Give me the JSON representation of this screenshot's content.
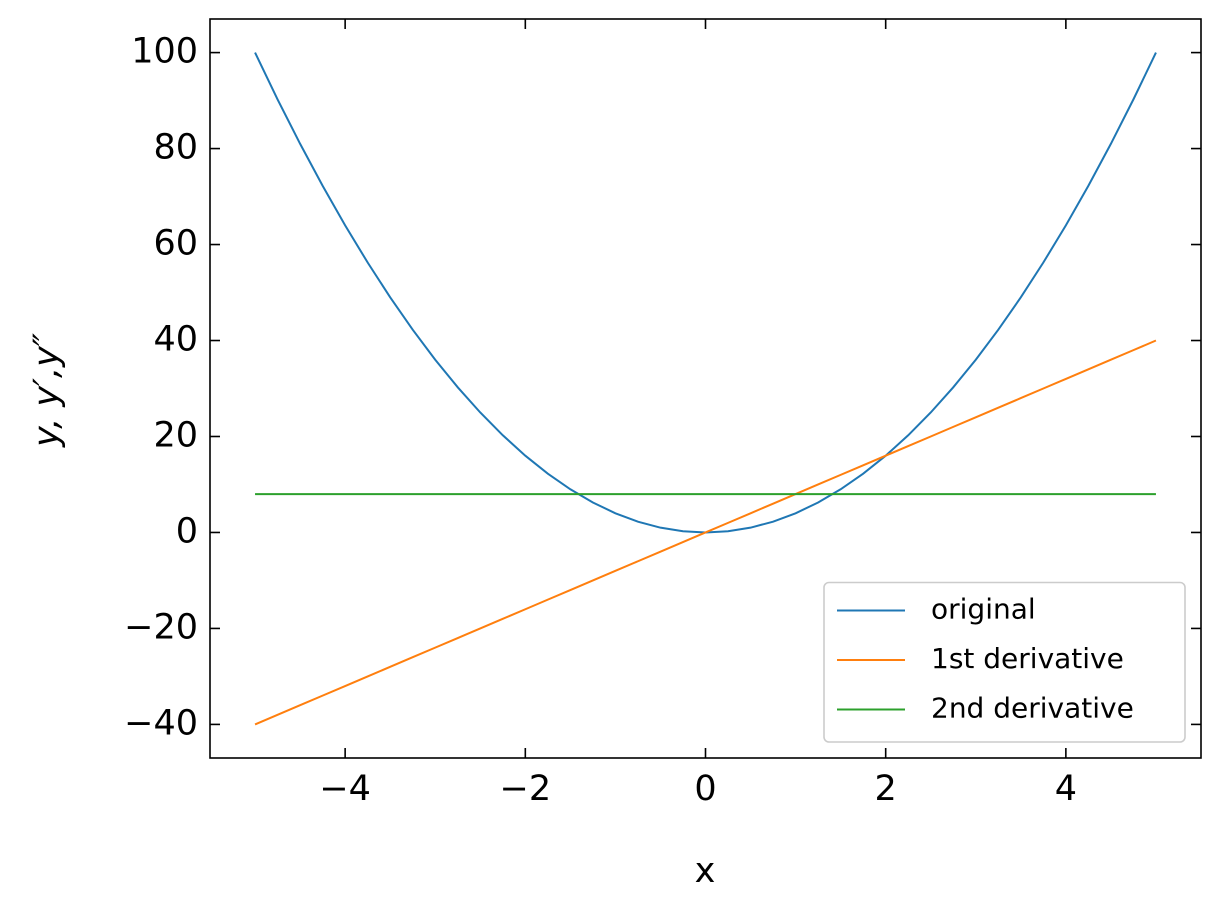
{
  "chart_data": {
    "type": "line",
    "xlabel": "x",
    "ylabel": "y, y′,y″",
    "x": [
      -5,
      -4.75,
      -4.5,
      -4.25,
      -4,
      -3.75,
      -3.5,
      -3.25,
      -3,
      -2.75,
      -2.5,
      -2.25,
      -2,
      -1.75,
      -1.5,
      -1.25,
      -1,
      -0.75,
      -0.5,
      -0.25,
      0,
      0.25,
      0.5,
      0.75,
      1,
      1.25,
      1.5,
      1.75,
      2,
      2.25,
      2.5,
      2.75,
      3,
      3.25,
      3.5,
      3.75,
      4,
      4.25,
      4.5,
      4.75,
      5
    ],
    "series": [
      {
        "name": "original",
        "color": "#1f77b4",
        "values": [
          100,
          90.25,
          81,
          72.25,
          64,
          56.25,
          49,
          42.25,
          36,
          30.25,
          25,
          20.25,
          16,
          12.25,
          9,
          6.25,
          4,
          2.25,
          1,
          0.25,
          0,
          0.25,
          1,
          2.25,
          4,
          6.25,
          9,
          12.25,
          16,
          20.25,
          25,
          30.25,
          36,
          42.25,
          49,
          56.25,
          64,
          72.25,
          81,
          90.25,
          100
        ]
      },
      {
        "name": "1st derivative",
        "color": "#ff7f0e",
        "values": [
          -40,
          -38,
          -36,
          -34,
          -32,
          -30,
          -28,
          -26,
          -24,
          -22,
          -20,
          -18,
          -16,
          -14,
          -12,
          -10,
          -8,
          -6,
          -4,
          -2,
          0,
          2,
          4,
          6,
          8,
          10,
          12,
          14,
          16,
          18,
          20,
          22,
          24,
          26,
          28,
          30,
          32,
          34,
          36,
          38,
          40
        ]
      },
      {
        "name": "2nd derivative",
        "color": "#2ca02c",
        "values": [
          8,
          8,
          8,
          8,
          8,
          8,
          8,
          8,
          8,
          8,
          8,
          8,
          8,
          8,
          8,
          8,
          8,
          8,
          8,
          8,
          8,
          8,
          8,
          8,
          8,
          8,
          8,
          8,
          8,
          8,
          8,
          8,
          8,
          8,
          8,
          8,
          8,
          8,
          8,
          8,
          8
        ]
      }
    ],
    "xlim": [
      -5.5,
      5.5
    ],
    "ylim": [
      -47,
      107
    ],
    "xticks": [
      {
        "value": -4,
        "label": "−4"
      },
      {
        "value": -2,
        "label": "−2"
      },
      0,
      2,
      4
    ],
    "yticks": [
      {
        "value": -40,
        "label": "−40"
      },
      {
        "value": -20,
        "label": "−20"
      },
      0,
      20,
      40,
      60,
      80,
      100
    ],
    "legend": "lower right",
    "grid": false
  }
}
